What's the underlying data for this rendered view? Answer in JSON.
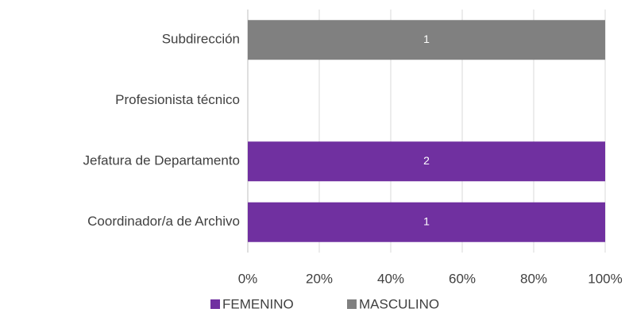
{
  "chart_data": {
    "type": "bar",
    "orientation": "horizontal",
    "stacking": "percent",
    "categories": [
      "Subdirección",
      "Profesionista técnico",
      "Jefatura de Departamento",
      "Coordinador/a de Archivo"
    ],
    "series": [
      {
        "name": "FEMENINO",
        "color": "#7030a0",
        "values": [
          0,
          0,
          2,
          1
        ]
      },
      {
        "name": "MASCULINO",
        "color": "#808080",
        "values": [
          1,
          0,
          0,
          0
        ]
      }
    ],
    "xlim": [
      0,
      100
    ],
    "xticks": [
      {
        "value": 0,
        "label": "0%"
      },
      {
        "value": 20,
        "label": "20%"
      },
      {
        "value": 40,
        "label": "40%"
      },
      {
        "value": 60,
        "label": "60%"
      },
      {
        "value": 80,
        "label": "80%"
      },
      {
        "value": 100,
        "label": "100%"
      }
    ],
    "grid": true,
    "legend": "bottom"
  }
}
